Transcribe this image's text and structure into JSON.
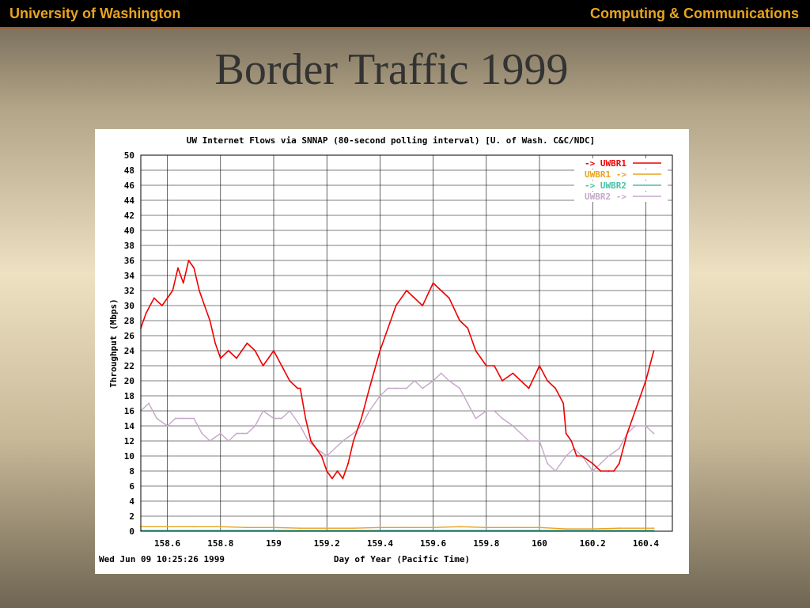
{
  "header": {
    "left": "University of Washington",
    "right": "Computing & Communications"
  },
  "slide": {
    "title": "Border Traffic 1999"
  },
  "chart_data": {
    "type": "line",
    "title": "UW Internet Flows via SNNAP (80-second polling interval) [U. of Wash. C&C/NDC]",
    "xlabel": "Day of Year (Pacific Time)",
    "ylabel": "Throughput (Mbps)",
    "timestamp": "Wed Jun 09 10:25:26 1999",
    "xlim": [
      158.5,
      160.5
    ],
    "ylim": [
      0,
      50
    ],
    "xticks": [
      "158.6",
      "158.8",
      "159",
      "159.2",
      "159.4",
      "159.6",
      "159.8",
      "160",
      "160.2",
      "160.4"
    ],
    "yticks": [
      "0",
      "2",
      "4",
      "6",
      "8",
      "10",
      "12",
      "14",
      "16",
      "18",
      "20",
      "22",
      "24",
      "26",
      "28",
      "30",
      "32",
      "34",
      "36",
      "38",
      "40",
      "42",
      "44",
      "46",
      "48",
      "50"
    ],
    "grid": true,
    "legend_position": "top-right",
    "series": [
      {
        "name": "-> UWBR1",
        "color": "#ee0000",
        "x": [
          158.5,
          158.52,
          158.55,
          158.58,
          158.6,
          158.62,
          158.64,
          158.66,
          158.68,
          158.7,
          158.72,
          158.74,
          158.76,
          158.78,
          158.8,
          158.83,
          158.86,
          158.9,
          158.93,
          158.96,
          159,
          159.03,
          159.06,
          159.09,
          159.1,
          159.12,
          159.14,
          159.16,
          159.18,
          159.2,
          159.22,
          159.24,
          159.26,
          159.28,
          159.3,
          159.33,
          159.36,
          159.4,
          159.43,
          159.46,
          159.5,
          159.53,
          159.56,
          159.6,
          159.63,
          159.66,
          159.7,
          159.73,
          159.76,
          159.8,
          159.83,
          159.86,
          159.9,
          159.93,
          159.96,
          160,
          160.03,
          160.06,
          160.09,
          160.1,
          160.12,
          160.14,
          160.16,
          160.2,
          160.23,
          160.26,
          160.28,
          160.3,
          160.33,
          160.36,
          160.38,
          160.4,
          160.43
        ],
        "y": [
          27,
          29,
          31,
          30,
          31,
          32,
          35,
          33,
          36,
          35,
          32,
          30,
          28,
          25,
          23,
          24,
          23,
          25,
          24,
          22,
          24,
          22,
          20,
          19,
          19,
          15,
          12,
          11,
          10,
          8,
          7,
          8,
          7,
          9,
          12,
          15,
          19,
          24,
          27,
          30,
          32,
          31,
          30,
          33,
          32,
          31,
          28,
          27,
          24,
          22,
          22,
          20,
          21,
          20,
          19,
          22,
          20,
          19,
          17,
          13,
          12,
          10,
          10,
          9,
          8,
          8,
          8,
          9,
          13,
          16,
          18,
          20,
          24
        ]
      },
      {
        "name": "UWBR1 ->",
        "color": "#e9a31e",
        "x": [
          158.5,
          158.6,
          158.7,
          158.8,
          158.9,
          159,
          159.1,
          159.2,
          159.3,
          159.4,
          159.5,
          159.6,
          159.7,
          159.8,
          159.9,
          160,
          160.1,
          160.2,
          160.3,
          160.43
        ],
        "y": [
          0.6,
          0.6,
          0.6,
          0.6,
          0.5,
          0.5,
          0.4,
          0.4,
          0.4,
          0.5,
          0.5,
          0.5,
          0.6,
          0.5,
          0.5,
          0.5,
          0.3,
          0.3,
          0.4,
          0.4
        ]
      },
      {
        "name": "-> UWBR2",
        "color": "#46c1a7",
        "x": [
          158.5,
          160.43
        ],
        "y": [
          0.1,
          0.1
        ]
      },
      {
        "name": "UWBR2 ->",
        "color": "#c5a8c9",
        "x": [
          158.5,
          158.53,
          158.56,
          158.6,
          158.63,
          158.66,
          158.7,
          158.73,
          158.76,
          158.8,
          158.83,
          158.86,
          158.9,
          158.93,
          158.96,
          159,
          159.03,
          159.06,
          159.1,
          159.13,
          159.16,
          159.2,
          159.23,
          159.26,
          159.3,
          159.33,
          159.36,
          159.4,
          159.43,
          159.46,
          159.5,
          159.53,
          159.56,
          159.6,
          159.63,
          159.66,
          159.7,
          159.73,
          159.76,
          159.8,
          159.83,
          159.86,
          159.9,
          159.93,
          159.96,
          160,
          160.03,
          160.06,
          160.1,
          160.13,
          160.16,
          160.2,
          160.23,
          160.26,
          160.3,
          160.33,
          160.36,
          160.4,
          160.43
        ],
        "y": [
          16,
          17,
          15,
          14,
          15,
          15,
          15,
          13,
          12,
          13,
          12,
          13,
          13,
          14,
          16,
          15,
          15,
          16,
          14,
          12,
          11,
          10,
          11,
          12,
          13,
          14,
          16,
          18,
          19,
          19,
          19,
          20,
          19,
          20,
          21,
          20,
          19,
          17,
          15,
          16,
          16,
          15,
          14,
          13,
          12,
          12,
          9,
          8,
          10,
          11,
          10,
          8,
          9,
          10,
          11,
          13,
          14,
          14,
          13
        ]
      }
    ]
  }
}
